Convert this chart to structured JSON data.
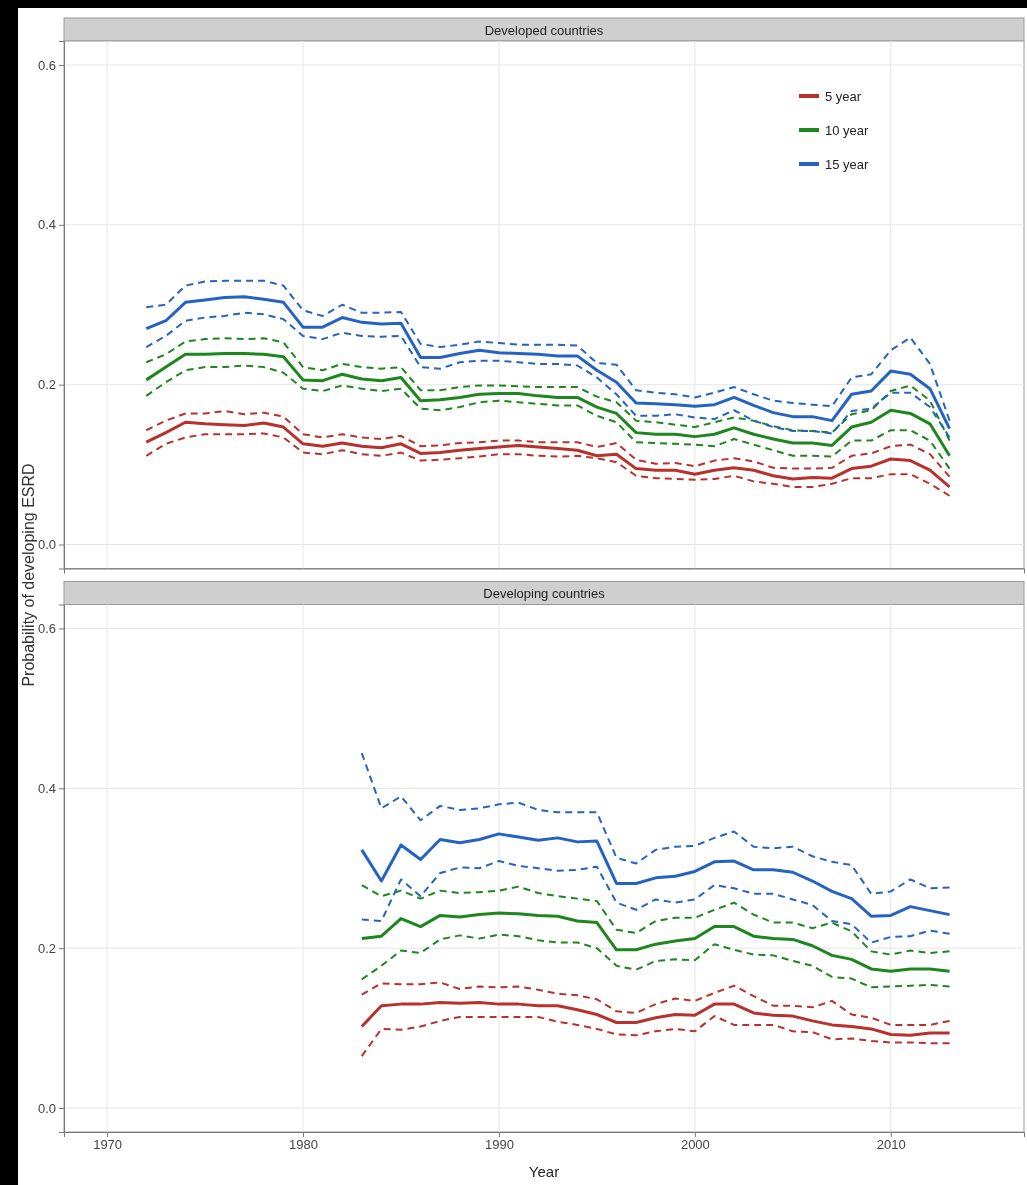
{
  "chart_data": [
    {
      "type": "line",
      "title": "Developed countries",
      "ylabel": "Probability of developing ESRD",
      "x": [
        1972,
        1973,
        1974,
        1975,
        1976,
        1977,
        1978,
        1979,
        1980,
        1981,
        1982,
        1983,
        1984,
        1985,
        1986,
        1987,
        1988,
        1989,
        1990,
        1991,
        1992,
        1993,
        1994,
        1995,
        1996,
        1997,
        1998,
        1999,
        2000,
        2001,
        2002,
        2003,
        2004,
        2005,
        2006,
        2007,
        2008,
        2009,
        2010,
        2011,
        2012,
        2013
      ],
      "xlim": [
        1967.8,
        2016.8
      ],
      "xticks": [
        1970,
        1980,
        1990,
        2000,
        2010
      ],
      "ylim": [
        -0.03,
        0.63
      ],
      "yticks": [
        {
          "value": 0,
          "label": "0.0"
        },
        0.2,
        0.4,
        0.6
      ],
      "tick_labels": "y",
      "grid": true,
      "legend": "top right",
      "series": [
        {
          "name": "5 year",
          "color": "#b8312c",
          "line_style": "solid",
          "values": [
            0.128,
            0.14,
            0.153,
            0.151,
            0.15,
            0.149,
            0.152,
            0.147,
            0.126,
            0.123,
            0.127,
            0.123,
            0.121,
            0.126,
            0.114,
            0.115,
            0.118,
            0.12,
            0.122,
            0.124,
            0.122,
            0.12,
            0.118,
            0.111,
            0.113,
            0.095,
            0.093,
            0.093,
            0.088,
            0.093,
            0.096,
            0.093,
            0.086,
            0.082,
            0.084,
            0.083,
            0.095,
            0.098,
            0.107,
            0.105,
            0.093,
            0.072
          ]
        },
        {
          "color": "#b8312c",
          "line_style": "dashed",
          "values": [
            0.143,
            0.155,
            0.164,
            0.164,
            0.167,
            0.163,
            0.165,
            0.16,
            0.138,
            0.134,
            0.138,
            0.134,
            0.132,
            0.136,
            0.123,
            0.124,
            0.127,
            0.128,
            0.13,
            0.13,
            0.128,
            0.128,
            0.128,
            0.122,
            0.127,
            0.106,
            0.101,
            0.102,
            0.098,
            0.105,
            0.108,
            0.104,
            0.096,
            0.095,
            0.095,
            0.096,
            0.111,
            0.114,
            0.123,
            0.125,
            0.113,
            0.085
          ]
        },
        {
          "color": "#b8312c",
          "line_style": "dashed",
          "values": [
            0.111,
            0.126,
            0.134,
            0.138,
            0.138,
            0.138,
            0.139,
            0.134,
            0.115,
            0.113,
            0.118,
            0.113,
            0.111,
            0.115,
            0.105,
            0.106,
            0.108,
            0.11,
            0.113,
            0.113,
            0.111,
            0.11,
            0.111,
            0.108,
            0.103,
            0.086,
            0.083,
            0.082,
            0.081,
            0.082,
            0.086,
            0.079,
            0.076,
            0.072,
            0.072,
            0.076,
            0.083,
            0.083,
            0.088,
            0.088,
            0.076,
            0.061
          ]
        },
        {
          "name": "10 year",
          "color": "#1d861d",
          "line_style": "solid",
          "values": [
            0.206,
            0.222,
            0.238,
            0.238,
            0.239,
            0.239,
            0.238,
            0.235,
            0.206,
            0.205,
            0.213,
            0.207,
            0.205,
            0.209,
            0.18,
            0.181,
            0.184,
            0.188,
            0.189,
            0.189,
            0.186,
            0.184,
            0.184,
            0.172,
            0.164,
            0.14,
            0.138,
            0.138,
            0.135,
            0.138,
            0.146,
            0.138,
            0.132,
            0.127,
            0.127,
            0.124,
            0.147,
            0.153,
            0.168,
            0.164,
            0.151,
            0.111
          ]
        },
        {
          "color": "#1d861d",
          "line_style": "dashed",
          "values": [
            0.228,
            0.238,
            0.254,
            0.257,
            0.258,
            0.257,
            0.258,
            0.253,
            0.222,
            0.218,
            0.226,
            0.222,
            0.22,
            0.222,
            0.193,
            0.193,
            0.197,
            0.199,
            0.199,
            0.198,
            0.197,
            0.197,
            0.197,
            0.185,
            0.178,
            0.155,
            0.153,
            0.15,
            0.147,
            0.153,
            0.159,
            0.155,
            0.148,
            0.143,
            0.142,
            0.14,
            0.163,
            0.168,
            0.192,
            0.199,
            0.18,
            0.13
          ]
        },
        {
          "color": "#1d861d",
          "line_style": "dashed",
          "values": [
            0.186,
            0.203,
            0.218,
            0.222,
            0.222,
            0.224,
            0.222,
            0.215,
            0.195,
            0.192,
            0.199,
            0.195,
            0.192,
            0.195,
            0.17,
            0.168,
            0.172,
            0.178,
            0.18,
            0.178,
            0.176,
            0.174,
            0.174,
            0.161,
            0.153,
            0.128,
            0.127,
            0.126,
            0.125,
            0.123,
            0.132,
            0.125,
            0.118,
            0.111,
            0.111,
            0.11,
            0.13,
            0.13,
            0.143,
            0.143,
            0.13,
            0.095
          ]
        },
        {
          "name": "15 year",
          "color": "#2463c2",
          "line_style": "solid",
          "values": [
            0.27,
            0.28,
            0.303,
            0.306,
            0.309,
            0.31,
            0.307,
            0.303,
            0.272,
            0.272,
            0.284,
            0.278,
            0.276,
            0.277,
            0.234,
            0.234,
            0.239,
            0.243,
            0.24,
            0.239,
            0.238,
            0.236,
            0.236,
            0.218,
            0.203,
            0.177,
            0.176,
            0.175,
            0.173,
            0.175,
            0.184,
            0.174,
            0.165,
            0.16,
            0.16,
            0.155,
            0.188,
            0.192,
            0.217,
            0.213,
            0.195,
            0.145
          ]
        },
        {
          "color": "#2463c2",
          "line_style": "dashed",
          "values": [
            0.297,
            0.3,
            0.324,
            0.329,
            0.33,
            0.33,
            0.33,
            0.324,
            0.293,
            0.286,
            0.3,
            0.29,
            0.29,
            0.291,
            0.251,
            0.247,
            0.25,
            0.254,
            0.252,
            0.25,
            0.25,
            0.25,
            0.249,
            0.227,
            0.225,
            0.193,
            0.19,
            0.188,
            0.184,
            0.19,
            0.197,
            0.188,
            0.18,
            0.177,
            0.175,
            0.173,
            0.209,
            0.213,
            0.243,
            0.259,
            0.226,
            0.155
          ]
        },
        {
          "color": "#2463c2",
          "line_style": "dashed",
          "values": [
            0.247,
            0.261,
            0.28,
            0.284,
            0.286,
            0.29,
            0.288,
            0.282,
            0.261,
            0.257,
            0.265,
            0.261,
            0.26,
            0.261,
            0.222,
            0.22,
            0.228,
            0.23,
            0.23,
            0.228,
            0.226,
            0.226,
            0.224,
            0.209,
            0.188,
            0.161,
            0.161,
            0.163,
            0.159,
            0.157,
            0.168,
            0.155,
            0.147,
            0.142,
            0.142,
            0.139,
            0.167,
            0.17,
            0.19,
            0.19,
            0.172,
            0.134
          ]
        }
      ]
    },
    {
      "type": "line",
      "title": "Developing countries",
      "xlabel": "Year",
      "x": [
        1983,
        1984,
        1985,
        1986,
        1987,
        1988,
        1989,
        1990,
        1991,
        1992,
        1993,
        1994,
        1995,
        1996,
        1997,
        1998,
        1999,
        2000,
        2001,
        2002,
        2003,
        2004,
        2005,
        2006,
        2007,
        2008,
        2009,
        2010,
        2011,
        2012,
        2013
      ],
      "xlim": [
        1967.8,
        2016.8
      ],
      "xticks": [
        1970,
        1980,
        1990,
        2000,
        2010
      ],
      "ylim": [
        -0.03,
        0.63
      ],
      "yticks": [
        {
          "value": 0,
          "label": "0.0"
        },
        0.2,
        0.4,
        0.6
      ],
      "grid": true,
      "series": [
        {
          "color": "#b8312c",
          "line_style": "solid",
          "values": [
            0.102,
            0.128,
            0.13,
            0.13,
            0.132,
            0.131,
            0.132,
            0.13,
            0.13,
            0.128,
            0.128,
            0.123,
            0.117,
            0.107,
            0.107,
            0.113,
            0.117,
            0.116,
            0.13,
            0.13,
            0.119,
            0.116,
            0.115,
            0.109,
            0.104,
            0.102,
            0.099,
            0.092,
            0.091,
            0.094,
            0.094
          ]
        },
        {
          "color": "#b8312c",
          "line_style": "dashed",
          "values": [
            0.142,
            0.156,
            0.155,
            0.155,
            0.157,
            0.149,
            0.152,
            0.151,
            0.152,
            0.148,
            0.143,
            0.141,
            0.136,
            0.121,
            0.119,
            0.13,
            0.137,
            0.134,
            0.144,
            0.153,
            0.14,
            0.128,
            0.128,
            0.126,
            0.134,
            0.117,
            0.113,
            0.104,
            0.104,
            0.104,
            0.109
          ]
        },
        {
          "color": "#b8312c",
          "line_style": "dashed",
          "values": [
            0.065,
            0.099,
            0.098,
            0.102,
            0.109,
            0.114,
            0.114,
            0.114,
            0.114,
            0.114,
            0.108,
            0.104,
            0.099,
            0.092,
            0.091,
            0.096,
            0.099,
            0.096,
            0.115,
            0.104,
            0.104,
            0.104,
            0.096,
            0.095,
            0.086,
            0.087,
            0.084,
            0.082,
            0.082,
            0.081,
            0.081
          ]
        },
        {
          "color": "#1d861d",
          "line_style": "solid",
          "values": [
            0.212,
            0.215,
            0.237,
            0.227,
            0.241,
            0.239,
            0.242,
            0.244,
            0.243,
            0.241,
            0.24,
            0.234,
            0.232,
            0.198,
            0.198,
            0.205,
            0.209,
            0.212,
            0.227,
            0.227,
            0.215,
            0.212,
            0.211,
            0.203,
            0.191,
            0.186,
            0.174,
            0.171,
            0.174,
            0.174,
            0.171
          ]
        },
        {
          "color": "#1d861d",
          "line_style": "dashed",
          "values": [
            0.279,
            0.265,
            0.272,
            0.262,
            0.272,
            0.269,
            0.27,
            0.272,
            0.277,
            0.269,
            0.265,
            0.262,
            0.259,
            0.223,
            0.219,
            0.234,
            0.238,
            0.238,
            0.248,
            0.257,
            0.242,
            0.232,
            0.232,
            0.225,
            0.232,
            0.221,
            0.196,
            0.192,
            0.197,
            0.194,
            0.196
          ]
        },
        {
          "color": "#1d861d",
          "line_style": "dashed",
          "values": [
            0.161,
            0.178,
            0.197,
            0.194,
            0.211,
            0.216,
            0.212,
            0.217,
            0.215,
            0.21,
            0.207,
            0.207,
            0.2,
            0.178,
            0.173,
            0.184,
            0.186,
            0.185,
            0.205,
            0.198,
            0.192,
            0.191,
            0.184,
            0.178,
            0.164,
            0.162,
            0.151,
            0.152,
            0.153,
            0.154,
            0.152
          ]
        },
        {
          "color": "#2463c2",
          "line_style": "solid",
          "values": [
            0.323,
            0.284,
            0.329,
            0.311,
            0.336,
            0.332,
            0.336,
            0.343,
            0.339,
            0.335,
            0.338,
            0.333,
            0.334,
            0.281,
            0.281,
            0.288,
            0.29,
            0.296,
            0.308,
            0.309,
            0.298,
            0.298,
            0.295,
            0.284,
            0.271,
            0.262,
            0.24,
            0.241,
            0.252,
            0.247,
            0.242
          ]
        },
        {
          "color": "#2463c2",
          "line_style": "dashed",
          "values": [
            0.444,
            0.375,
            0.39,
            0.36,
            0.378,
            0.373,
            0.375,
            0.38,
            0.382,
            0.373,
            0.37,
            0.37,
            0.37,
            0.313,
            0.306,
            0.323,
            0.327,
            0.328,
            0.338,
            0.346,
            0.327,
            0.325,
            0.327,
            0.315,
            0.308,
            0.304,
            0.268,
            0.271,
            0.286,
            0.275,
            0.276
          ]
        },
        {
          "color": "#2463c2",
          "line_style": "dashed",
          "values": [
            0.236,
            0.234,
            0.286,
            0.265,
            0.294,
            0.301,
            0.3,
            0.309,
            0.303,
            0.3,
            0.297,
            0.298,
            0.302,
            0.257,
            0.248,
            0.261,
            0.257,
            0.261,
            0.279,
            0.275,
            0.268,
            0.268,
            0.261,
            0.254,
            0.234,
            0.23,
            0.207,
            0.214,
            0.215,
            0.222,
            0.218
          ]
        }
      ]
    }
  ]
}
